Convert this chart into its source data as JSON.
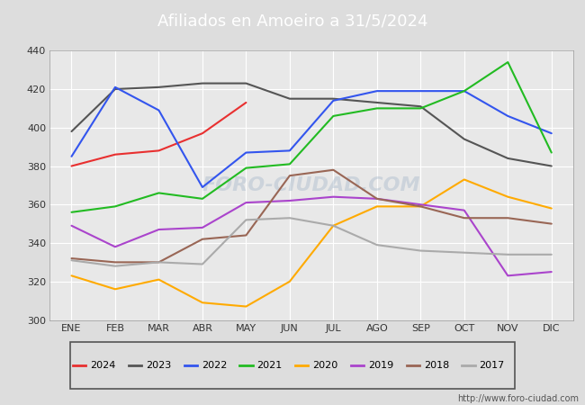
{
  "title": "Afiliados en Amoeiro a 31/5/2024",
  "months": [
    "ENE",
    "FEB",
    "MAR",
    "ABR",
    "MAY",
    "JUN",
    "JUL",
    "AGO",
    "SEP",
    "OCT",
    "NOV",
    "DIC"
  ],
  "watermark": "FORO-CIUDAD.COM",
  "url": "http://www.foro-ciudad.com",
  "ylim": [
    300,
    440
  ],
  "yticks": [
    300,
    320,
    340,
    360,
    380,
    400,
    420,
    440
  ],
  "series": {
    "2024": {
      "color": "#e83030",
      "data": [
        380,
        386,
        388,
        397,
        413,
        null,
        null,
        null,
        null,
        null,
        null,
        null
      ]
    },
    "2023": {
      "color": "#555555",
      "data": [
        398,
        420,
        421,
        423,
        423,
        415,
        415,
        413,
        411,
        394,
        384,
        380
      ]
    },
    "2022": {
      "color": "#3355ee",
      "data": [
        385,
        421,
        409,
        369,
        387,
        388,
        414,
        419,
        419,
        419,
        406,
        397
      ]
    },
    "2021": {
      "color": "#22bb22",
      "data": [
        356,
        359,
        366,
        363,
        379,
        381,
        406,
        410,
        410,
        419,
        434,
        387
      ]
    },
    "2020": {
      "color": "#ffaa00",
      "data": [
        323,
        316,
        321,
        309,
        307,
        320,
        349,
        359,
        359,
        373,
        364,
        358
      ]
    },
    "2019": {
      "color": "#aa44cc",
      "data": [
        349,
        338,
        347,
        348,
        361,
        362,
        364,
        363,
        360,
        357,
        323,
        325
      ]
    },
    "2018": {
      "color": "#996655",
      "data": [
        332,
        330,
        330,
        342,
        344,
        375,
        378,
        363,
        359,
        353,
        353,
        350
      ]
    },
    "2017": {
      "color": "#aaaaaa",
      "data": [
        331,
        328,
        330,
        329,
        352,
        353,
        349,
        339,
        336,
        335,
        334,
        334
      ]
    }
  },
  "legend_order": [
    "2024",
    "2023",
    "2022",
    "2021",
    "2020",
    "2019",
    "2018",
    "2017"
  ],
  "header_color": "#5588bb",
  "header_text_color": "#ffffff",
  "fig_bg": "#dddddd",
  "plot_bg": "#e8e8e8",
  "grid_color": "#ffffff",
  "legend_bg": "#f0f0f0",
  "legend_border": "#555555"
}
